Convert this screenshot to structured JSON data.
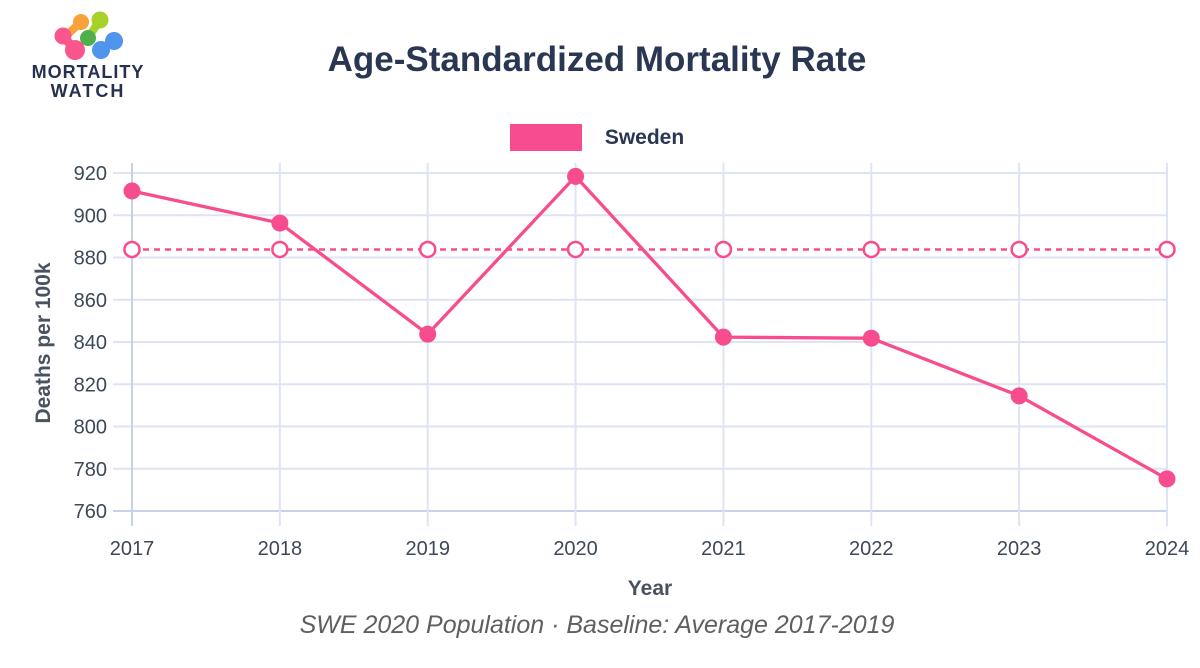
{
  "brand": {
    "line1": "MORTALITY",
    "line2": "WATCH"
  },
  "header": {
    "title": "Age-Standardized Mortality Rate"
  },
  "legend": {
    "items": [
      {
        "label": "Sweden",
        "color": "#f74c8e"
      }
    ]
  },
  "chart_data": {
    "type": "line",
    "title": "Age-Standardized Mortality Rate",
    "xlabel": "Year",
    "ylabel": "Deaths per 100k",
    "categories": [
      "2017",
      "2018",
      "2019",
      "2020",
      "2021",
      "2022",
      "2023",
      "2024"
    ],
    "series": [
      {
        "name": "Sweden",
        "color": "#f74c8e",
        "values": [
          911.5,
          896.3,
          843.7,
          918.4,
          842.3,
          841.8,
          814.5,
          775.2
        ]
      }
    ],
    "baseline": {
      "label": "Average 2017-2019",
      "value": 883.8,
      "style": "dashed",
      "color": "#f74c8e"
    },
    "y_ticks": [
      760,
      780,
      800,
      820,
      840,
      860,
      880,
      900,
      920
    ],
    "ylim": [
      760,
      925
    ],
    "grid": true,
    "legend_position": "top"
  },
  "footer": {
    "caption": "SWE 2020 Population · Baseline: Average 2017-2019"
  },
  "colors": {
    "accent": "#f74c8e",
    "navy": "#2a3752",
    "grid_light": "#dfe4f4",
    "grid_dark": "#c9d1e8",
    "tick_text": "#3d4859",
    "logo_pink": "#f9568d",
    "logo_orange": "#f9a13b",
    "logo_lime": "#a7d028",
    "logo_green": "#4db04a",
    "logo_blue": "#4f94ed"
  }
}
